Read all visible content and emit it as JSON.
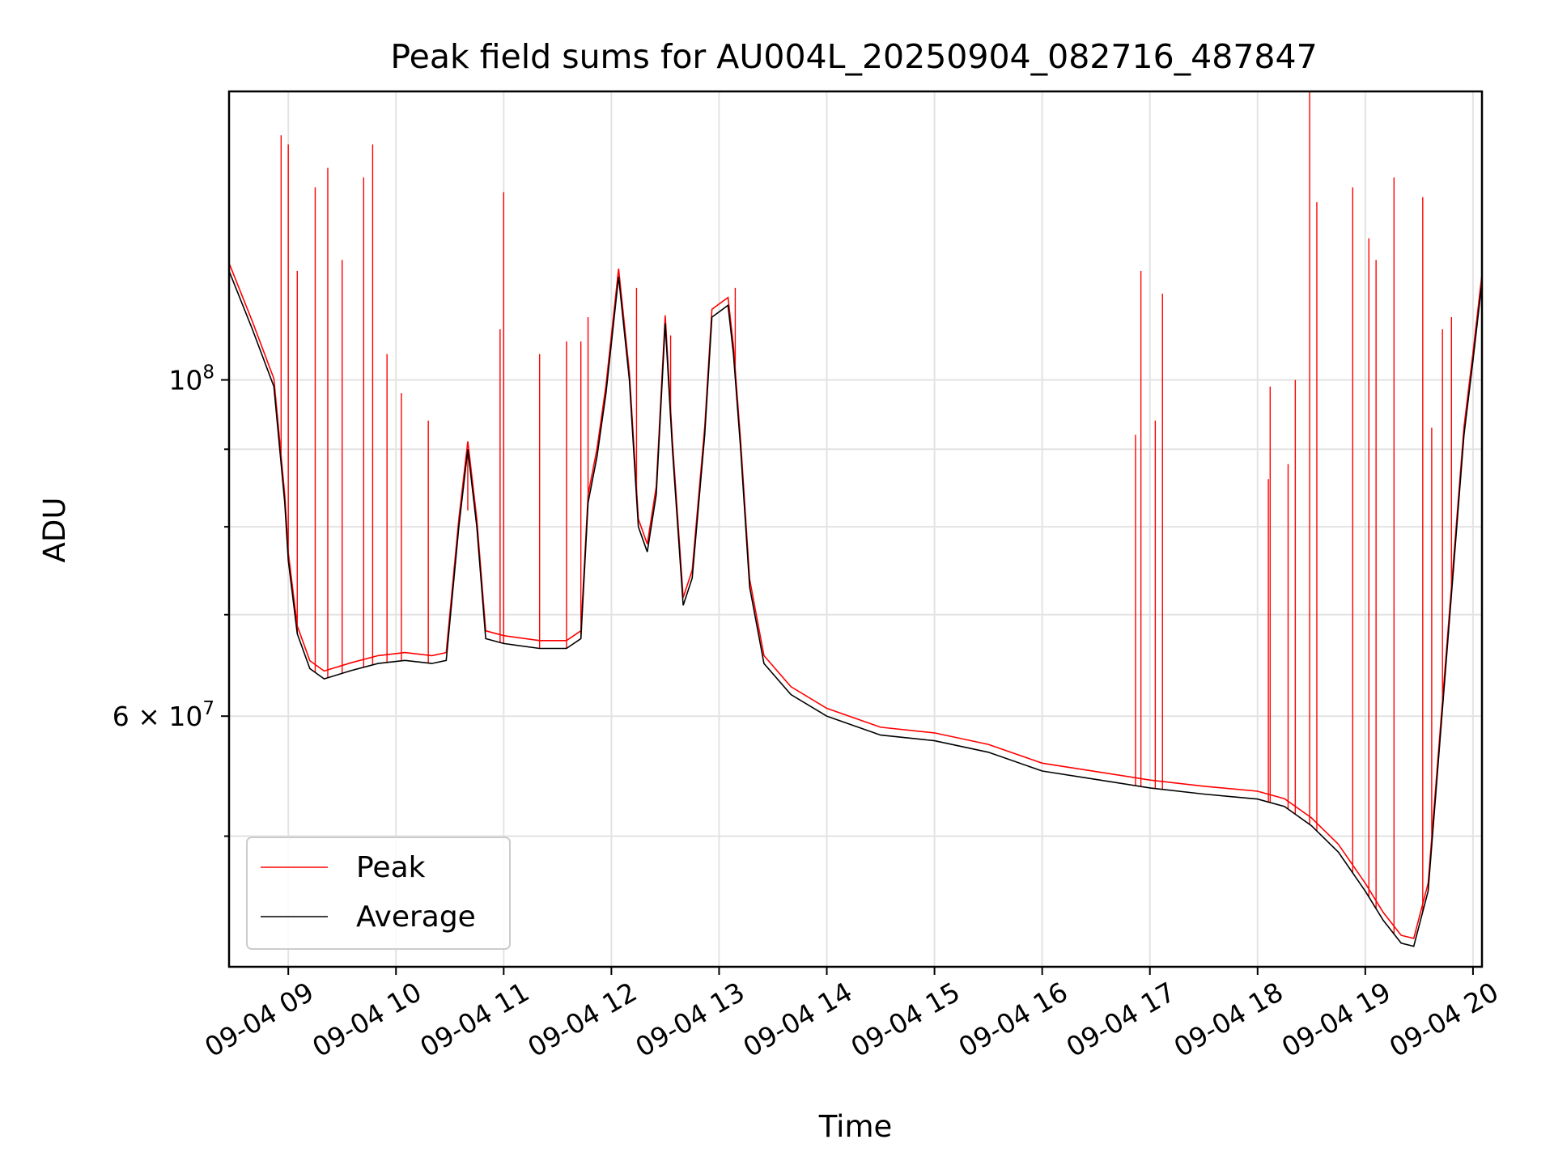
{
  "chart_data": {
    "type": "line",
    "title": "Peak field sums for AU004L_20250904_082716_487847",
    "xlabel": "Time",
    "ylabel": "ADU",
    "yscale": "log",
    "ylim": [
      41000000,
      155000000
    ],
    "xlim": [
      "09-04 08:27",
      "09-04 20:05"
    ],
    "grid": true,
    "legend_position": "lower-left",
    "x_ticks": [
      "09-04 09",
      "09-04 10",
      "09-04 11",
      "09-04 12",
      "09-04 13",
      "09-04 14",
      "09-04 15",
      "09-04 16",
      "09-04 17",
      "09-04 18",
      "09-04 19",
      "09-04 20"
    ],
    "y_tick_labels": [
      {
        "value": 100000000,
        "base": "10",
        "exp": "8",
        "prefix": ""
      },
      {
        "value": 60000000,
        "base": "10",
        "exp": "7",
        "prefix": "6 × "
      }
    ],
    "series": [
      {
        "name": "Average",
        "color": "#000000",
        "points": [
          [
            "09-04 08:27",
            118000000
          ],
          [
            "09-04 08:40",
            108000000
          ],
          [
            "09-04 08:52",
            99000000
          ],
          [
            "09-04 08:58",
            83000000
          ],
          [
            "09-04 09:00",
            76000000
          ],
          [
            "09-04 09:05",
            68000000
          ],
          [
            "09-04 09:12",
            64500000
          ],
          [
            "09-04 09:20",
            63500000
          ],
          [
            "09-04 09:35",
            64300000
          ],
          [
            "09-04 09:50",
            65000000
          ],
          [
            "09-04 10:05",
            65300000
          ],
          [
            "09-04 10:20",
            65000000
          ],
          [
            "09-04 10:28",
            65300000
          ],
          [
            "09-04 10:35",
            80000000
          ],
          [
            "09-04 10:40",
            90000000
          ],
          [
            "09-04 10:45",
            80000000
          ],
          [
            "09-04 10:50",
            67500000
          ],
          [
            "09-04 11:00",
            67000000
          ],
          [
            "09-04 11:20",
            66500000
          ],
          [
            "09-04 11:35",
            66500000
          ],
          [
            "09-04 11:43",
            67500000
          ],
          [
            "09-04 11:47",
            83000000
          ],
          [
            "09-04 11:52",
            89000000
          ],
          [
            "09-04 11:57",
            98000000
          ],
          [
            "09-04 12:04",
            117000000
          ],
          [
            "09-04 12:10",
            100000000
          ],
          [
            "09-04 12:15",
            80000000
          ],
          [
            "09-04 12:20",
            77000000
          ],
          [
            "09-04 12:25",
            84000000
          ],
          [
            "09-04 12:30",
            109000000
          ],
          [
            "09-04 12:34",
            90000000
          ],
          [
            "09-04 12:40",
            71000000
          ],
          [
            "09-04 12:45",
            74000000
          ],
          [
            "09-04 12:52",
            92000000
          ],
          [
            "09-04 12:56",
            110000000
          ],
          [
            "09-04 13:05",
            112000000
          ],
          [
            "09-04 13:08",
            104000000
          ],
          [
            "09-04 13:12",
            90000000
          ],
          [
            "09-04 13:17",
            73000000
          ],
          [
            "09-04 13:25",
            65000000
          ],
          [
            "09-04 13:40",
            62000000
          ],
          [
            "09-04 14:00",
            60000000
          ],
          [
            "09-04 14:30",
            58300000
          ],
          [
            "09-04 15:00",
            57800000
          ],
          [
            "09-04 15:30",
            56800000
          ],
          [
            "09-04 16:00",
            55200000
          ],
          [
            "09-04 16:30",
            54500000
          ],
          [
            "09-04 17:00",
            53800000
          ],
          [
            "09-04 17:30",
            53300000
          ],
          [
            "09-04 18:00",
            52900000
          ],
          [
            "09-04 18:15",
            52300000
          ],
          [
            "09-04 18:30",
            50800000
          ],
          [
            "09-04 18:45",
            48800000
          ],
          [
            "09-04 19:00",
            46000000
          ],
          [
            "09-04 19:10",
            44000000
          ],
          [
            "09-04 19:20",
            42500000
          ],
          [
            "09-04 19:27",
            42300000
          ],
          [
            "09-04 19:35",
            46000000
          ],
          [
            "09-04 19:45",
            65000000
          ],
          [
            "09-04 19:55",
            92000000
          ],
          [
            "09-04 20:00",
            103000000
          ],
          [
            "09-04 20:05",
            116000000
          ]
        ]
      },
      {
        "name": "Peak",
        "color": "#ff0000",
        "spikes": [
          [
            "09-04 08:56",
            145000000
          ],
          [
            "09-04 09:00",
            143000000
          ],
          [
            "09-04 09:05",
            118000000
          ],
          [
            "09-04 09:15",
            134000000
          ],
          [
            "09-04 09:22",
            138000000
          ],
          [
            "09-04 09:30",
            120000000
          ],
          [
            "09-04 09:42",
            136000000
          ],
          [
            "09-04 09:47",
            143000000
          ],
          [
            "09-04 09:55",
            104000000
          ],
          [
            "09-04 10:03",
            98000000
          ],
          [
            "09-04 10:18",
            94000000
          ],
          [
            "09-04 10:40",
            82000000
          ],
          [
            "09-04 10:58",
            108000000
          ],
          [
            "09-04 11:00",
            133000000
          ],
          [
            "09-04 11:20",
            104000000
          ],
          [
            "09-04 11:35",
            106000000
          ],
          [
            "09-04 11:43",
            106000000
          ],
          [
            "09-04 11:47",
            110000000
          ],
          [
            "09-04 12:14",
            115000000
          ],
          [
            "09-04 12:33",
            107000000
          ],
          [
            "09-04 13:09",
            115000000
          ],
          [
            "09-04 16:52",
            92000000
          ],
          [
            "09-04 16:55",
            118000000
          ],
          [
            "09-04 17:03",
            94000000
          ],
          [
            "09-04 17:07",
            114000000
          ],
          [
            "09-04 18:06",
            86000000
          ],
          [
            "09-04 18:07",
            99000000
          ],
          [
            "09-04 18:17",
            88000000
          ],
          [
            "09-04 18:21",
            100000000
          ],
          [
            "09-04 18:29",
            158000000
          ],
          [
            "09-04 18:33",
            131000000
          ],
          [
            "09-04 18:53",
            134000000
          ],
          [
            "09-04 19:02",
            124000000
          ],
          [
            "09-04 19:06",
            120000000
          ],
          [
            "09-04 19:16",
            136000000
          ],
          [
            "09-04 19:32",
            132000000
          ],
          [
            "09-04 19:37",
            93000000
          ],
          [
            "09-04 19:43",
            108000000
          ],
          [
            "09-04 19:48",
            110000000
          ]
        ]
      }
    ]
  }
}
